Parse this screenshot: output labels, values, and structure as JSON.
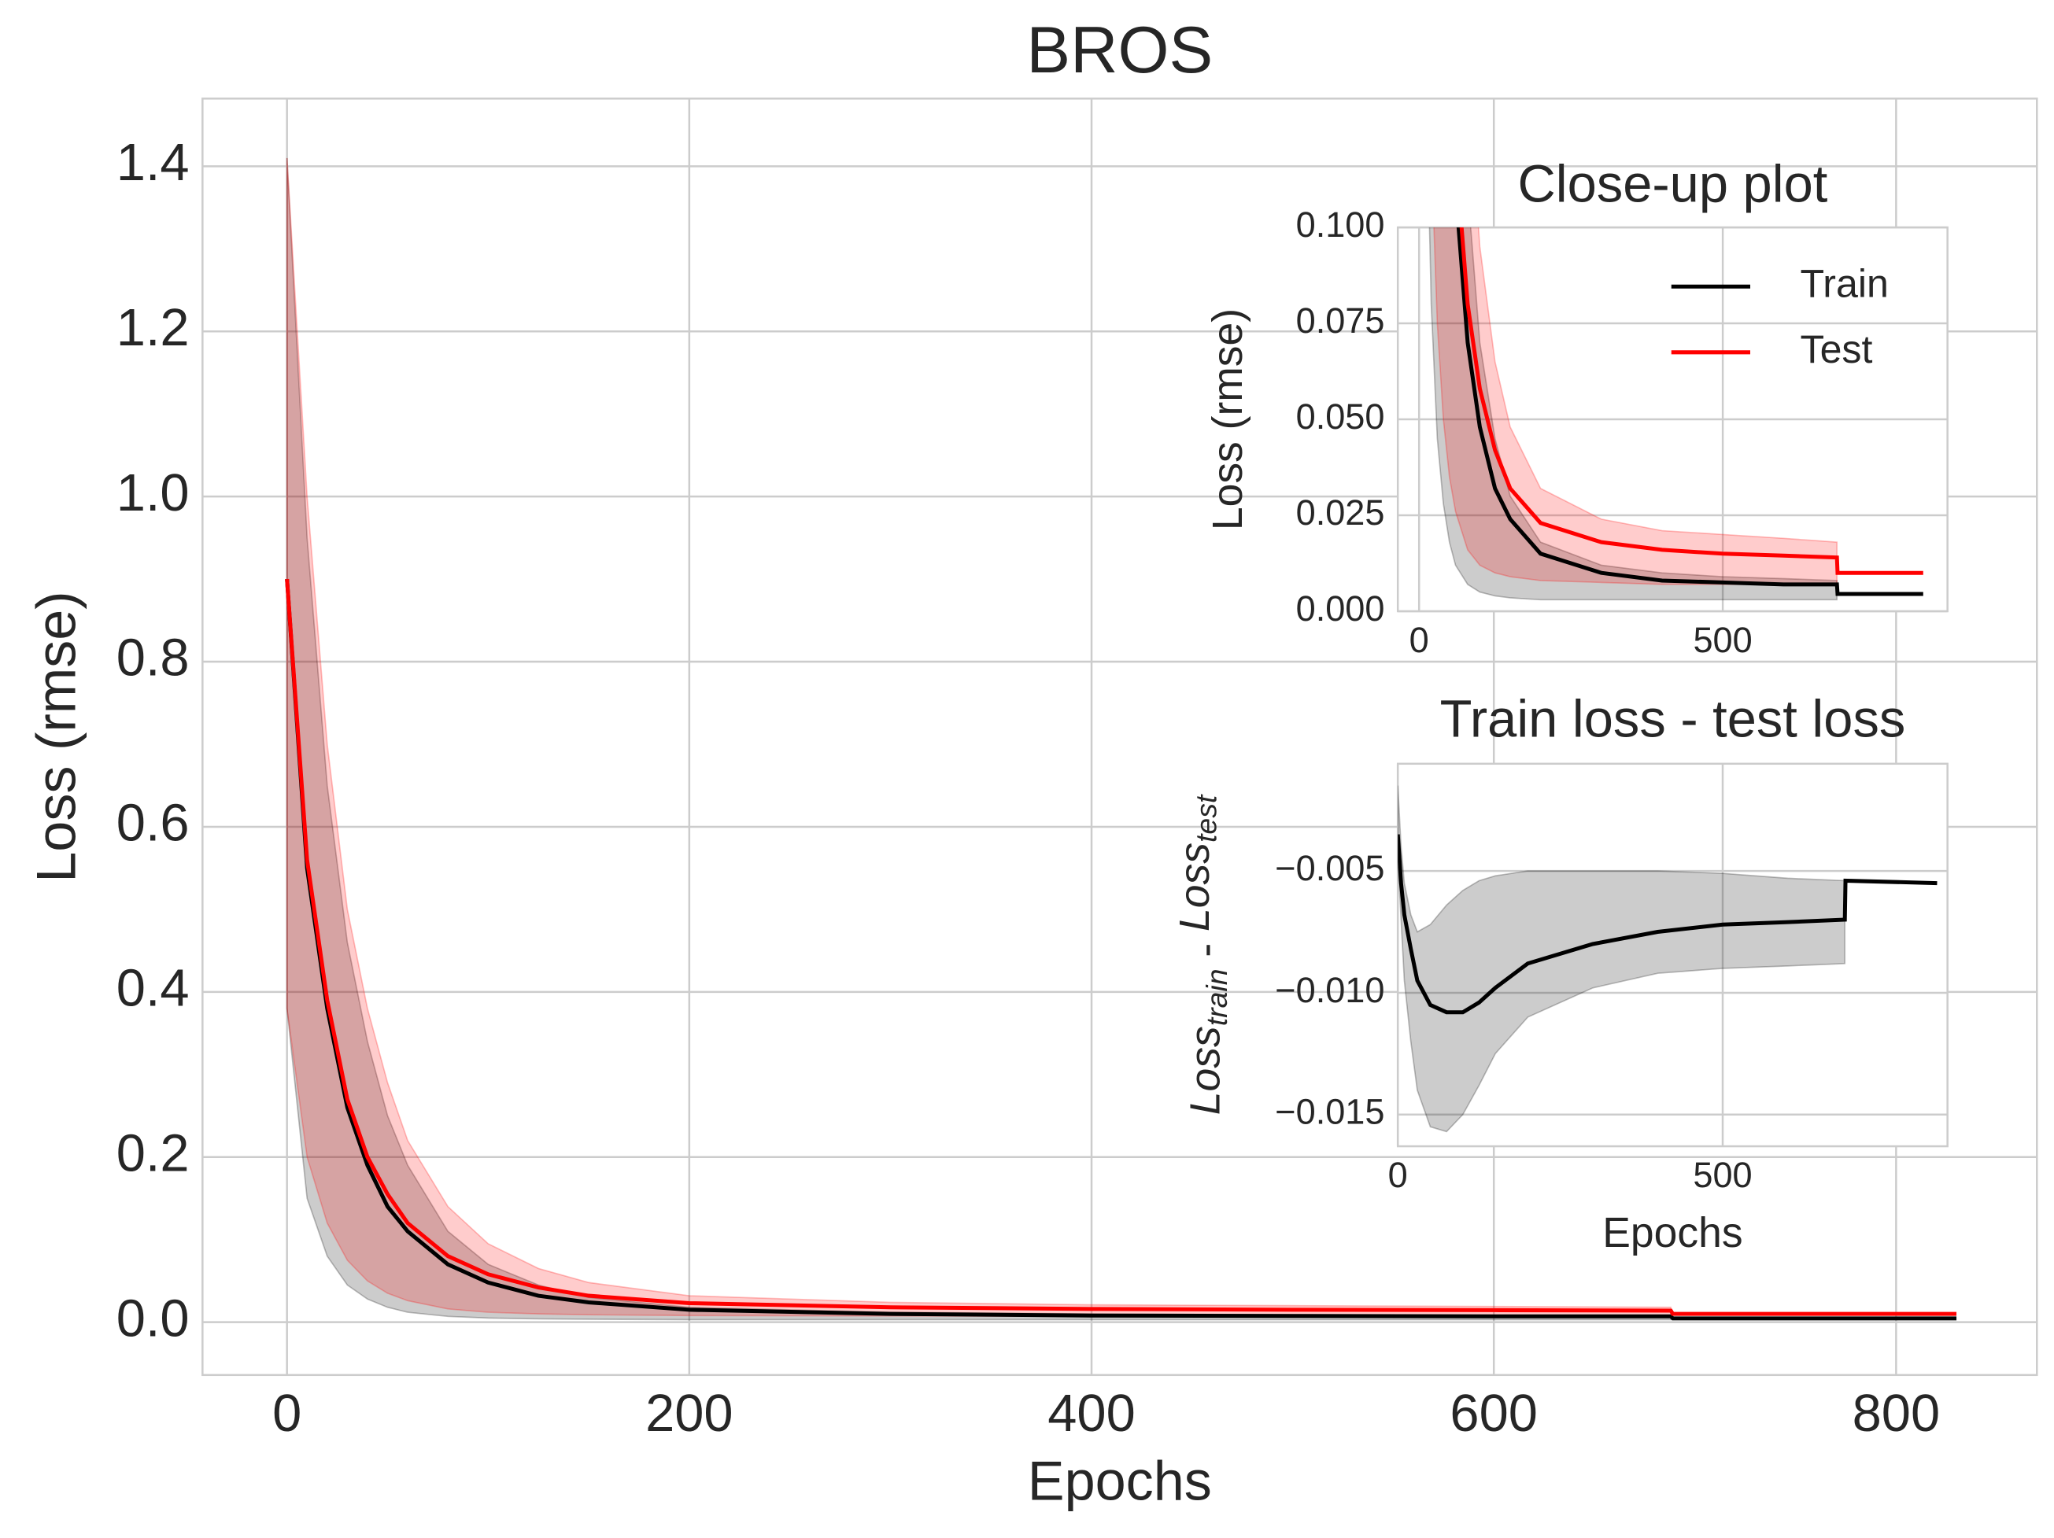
{
  "chart_data": [
    {
      "type": "line",
      "title": "BROS",
      "xlabel": "Epochs",
      "ylabel": "Loss (rmse)",
      "xlim": [
        -42,
        870
      ],
      "ylim": [
        -0.064,
        1.482
      ],
      "xticks": [
        0,
        200,
        400,
        600,
        800
      ],
      "yticks": [
        {
          "value": 0,
          "label": "0.0"
        },
        0.2,
        0.4,
        0.6,
        0.8,
        {
          "value": 1,
          "label": "1.0"
        },
        1.2,
        1.4
      ],
      "grid": true,
      "x": [
        0,
        10,
        20,
        30,
        40,
        50,
        60,
        80,
        100,
        125,
        150,
        200,
        300,
        400,
        500,
        600,
        688,
        689,
        830
      ],
      "series": [
        {
          "name": "Train",
          "color": "#000000",
          "band_color": "#000000",
          "values": [
            0.9,
            0.55,
            0.38,
            0.26,
            0.19,
            0.14,
            0.11,
            0.07,
            0.048,
            0.032,
            0.024,
            0.015,
            0.01,
            0.008,
            0.0075,
            0.007,
            0.007,
            0.0045,
            0.0045
          ],
          "lower": [
            0.38,
            0.15,
            0.08,
            0.045,
            0.028,
            0.018,
            0.012,
            0.007,
            0.005,
            0.004,
            0.0035,
            0.003,
            0.003,
            0.003,
            0.003,
            0.003,
            0.003,
            null,
            null
          ],
          "upper": [
            1.41,
            0.95,
            0.65,
            0.46,
            0.34,
            0.25,
            0.19,
            0.11,
            0.07,
            0.045,
            0.03,
            0.018,
            0.012,
            0.01,
            0.009,
            0.0085,
            0.008,
            null,
            null
          ]
        },
        {
          "name": "Test",
          "color": "#ff0000",
          "band_color": "#ff0000",
          "values": [
            0.9,
            0.56,
            0.39,
            0.27,
            0.2,
            0.155,
            0.12,
            0.08,
            0.058,
            0.042,
            0.032,
            0.023,
            0.018,
            0.016,
            0.015,
            0.0145,
            0.014,
            0.01,
            0.01
          ],
          "lower": [
            0.38,
            0.2,
            0.12,
            0.075,
            0.05,
            0.035,
            0.026,
            0.016,
            0.012,
            0.01,
            0.009,
            0.008,
            0.0075,
            0.007,
            0.007,
            0.007,
            0.007,
            null,
            null
          ],
          "upper": [
            1.41,
            1.0,
            0.7,
            0.5,
            0.38,
            0.29,
            0.22,
            0.14,
            0.095,
            0.065,
            0.048,
            0.032,
            0.024,
            0.021,
            0.02,
            0.019,
            0.018,
            null,
            null
          ]
        }
      ]
    },
    {
      "type": "line",
      "title": "Close-up plot",
      "ylabel": "Loss (rmse)",
      "xlim": [
        -35,
        870
      ],
      "ylim": [
        0,
        0.1
      ],
      "xticks": [
        0,
        500
      ],
      "yticks": [
        {
          "value": 0,
          "label": "0.000"
        },
        {
          "value": 0.025,
          "label": "0.025"
        },
        {
          "value": 0.05,
          "label": "0.050"
        },
        {
          "value": 0.075,
          "label": "0.075"
        },
        {
          "value": 0.1,
          "label": "0.100"
        }
      ],
      "grid": true,
      "legend": "upper right"
    },
    {
      "type": "line",
      "title": "Train loss - test loss",
      "xlabel": "Epochs",
      "ylabel": [
        "Loss",
        "train",
        " - ",
        "Loss",
        "test"
      ],
      "xlim": [
        0,
        846
      ],
      "ylim": [
        -0.0163,
        -0.0006
      ],
      "xticks": [
        0,
        500
      ],
      "yticks": [
        {
          "value": -0.005,
          "label": "−0.005"
        },
        {
          "value": -0.01,
          "label": "−0.010"
        },
        {
          "value": -0.015,
          "label": "−0.015"
        }
      ],
      "grid": true,
      "x": [
        0,
        5,
        10,
        20,
        30,
        50,
        75,
        100,
        125,
        150,
        200,
        300,
        400,
        500,
        600,
        688,
        689,
        830
      ],
      "series": [
        {
          "color": "#000000",
          "band_color": "#000000",
          "values": [
            -0.0035,
            -0.0055,
            -0.0068,
            -0.0082,
            -0.0095,
            -0.0105,
            -0.0108,
            -0.0108,
            -0.0104,
            -0.0098,
            -0.0088,
            -0.008,
            -0.0075,
            -0.0072,
            -0.0071,
            -0.007,
            -0.0054,
            -0.0055
          ],
          "lower": [
            -0.0045,
            -0.007,
            -0.0095,
            -0.012,
            -0.014,
            -0.0155,
            -0.0157,
            -0.015,
            -0.0138,
            -0.0125,
            -0.011,
            -0.0098,
            -0.0092,
            -0.009,
            -0.0089,
            -0.0088,
            null,
            null
          ],
          "upper": [
            -0.0015,
            -0.004,
            -0.0055,
            -0.0068,
            -0.0075,
            -0.0072,
            -0.0064,
            -0.0058,
            -0.0054,
            -0.0052,
            -0.005,
            -0.005,
            -0.005,
            -0.0051,
            -0.0053,
            -0.0054,
            null,
            null
          ]
        }
      ]
    }
  ]
}
